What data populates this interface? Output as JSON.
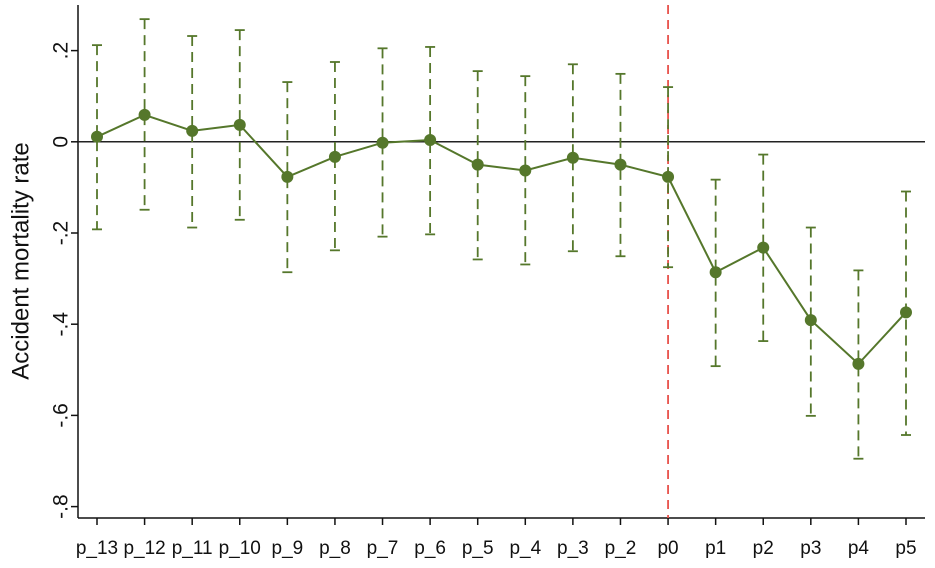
{
  "chart_data": {
    "type": "errorbar-line",
    "y_label": "Accident mortality rate",
    "categories": [
      "p_13",
      "p_12",
      "p_11",
      "p_10",
      "p_9",
      "p_8",
      "p_7",
      "p_6",
      "p_5",
      "p_4",
      "p_3",
      "p_2",
      "p0",
      "p1",
      "p2",
      "p3",
      "p4",
      "p5"
    ],
    "series": [
      {
        "color": "#55772b",
        "values": [
          0.011,
          0.059,
          0.024,
          0.037,
          -0.077,
          -0.033,
          -0.002,
          0.004,
          -0.05,
          -0.063,
          -0.035,
          -0.05,
          -0.077,
          -0.286,
          -0.232,
          -0.391,
          -0.487,
          -0.374
        ],
        "lower": [
          -0.192,
          -0.149,
          -0.188,
          -0.171,
          -0.286,
          -0.238,
          -0.208,
          -0.203,
          -0.258,
          -0.269,
          -0.24,
          -0.251,
          -0.275,
          -0.492,
          -0.437,
          -0.601,
          -0.695,
          -0.643
        ],
        "upper": [
          0.212,
          0.269,
          0.232,
          0.245,
          0.131,
          0.175,
          0.205,
          0.208,
          0.155,
          0.144,
          0.17,
          0.149,
          0.12,
          -0.083,
          -0.028,
          -0.188,
          -0.282,
          -0.109
        ]
      }
    ],
    "ylim": [
      -0.825,
      0.3
    ],
    "yticks": [
      {
        "value": 0.2,
        "label": ".2"
      },
      0,
      {
        "value": -0.2,
        "label": "-.2"
      },
      {
        "value": -0.4,
        "label": "-.4"
      },
      {
        "value": -0.6,
        "label": "-.6"
      },
      {
        "value": -0.8,
        "label": "-.8"
      }
    ],
    "hline": 0,
    "hline_color": "#222222",
    "vline_index": 12,
    "vline_color": "#e8504a"
  }
}
